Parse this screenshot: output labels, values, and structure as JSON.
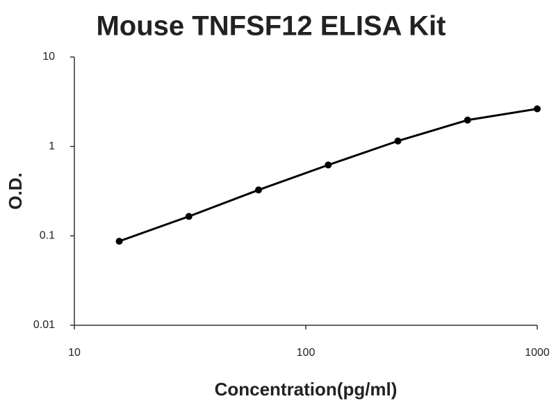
{
  "chart_data": {
    "type": "line",
    "title": "Mouse TNFSF12 ELISA Kit",
    "x_label": "Concentration(pg/ml)",
    "y_label": "O.D.",
    "x": [
      15.625,
      31.25,
      62.5,
      125,
      250,
      500,
      1000
    ],
    "series": [
      {
        "color": "#000000",
        "values": [
          0.087,
          0.165,
          0.326,
          0.62,
          1.15,
          1.97,
          2.63
        ]
      }
    ],
    "xlim": [
      10,
      1000
    ],
    "xticks": [
      10,
      100,
      1000
    ],
    "ylim": [
      0.01,
      10
    ],
    "yticks": [
      0.01,
      0.1,
      1,
      10
    ],
    "xscale": "log",
    "yscale": "log",
    "grid": false
  }
}
